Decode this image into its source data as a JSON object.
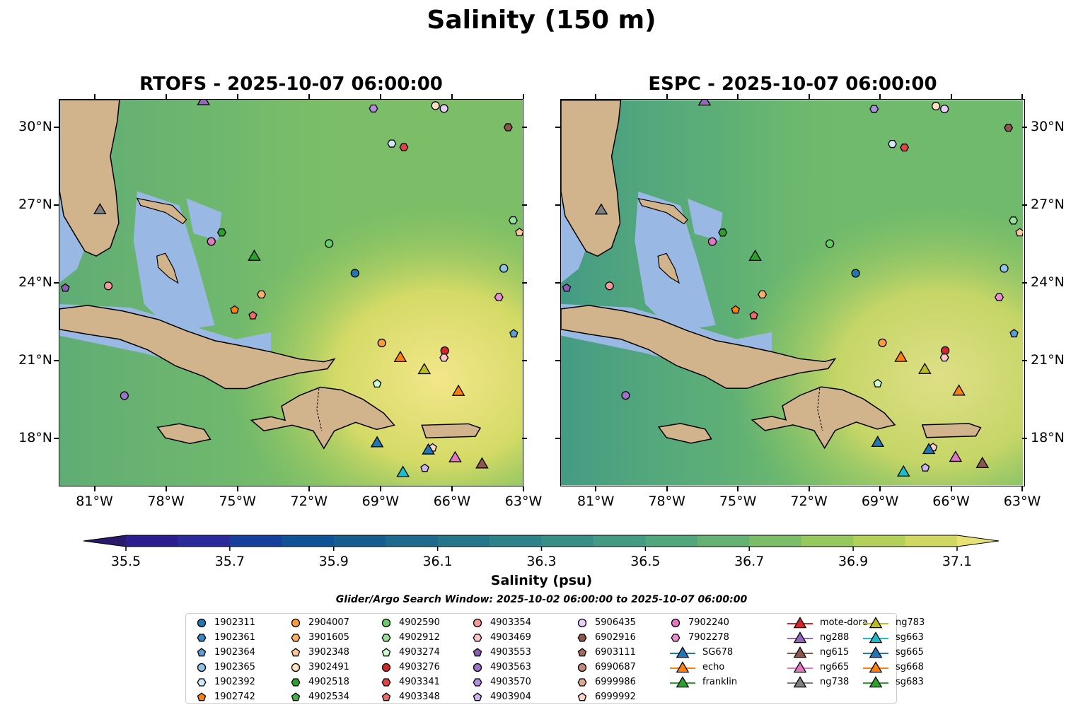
{
  "chart_data": {
    "type": "heatmap",
    "title": "Salinity (150 m)",
    "panels": [
      {
        "title": "RTOFS - 2025-10-07 06:00:00",
        "model": "RTOFS"
      },
      {
        "title": "ESPC - 2025-10-07 06:00:00",
        "model": "ESPC"
      }
    ],
    "lon_range": [
      -82.5,
      -63
    ],
    "lat_range": [
      16.15,
      31.1
    ],
    "x_ticks": [
      {
        "v": -81,
        "label": "81°W"
      },
      {
        "v": -78,
        "label": "78°W"
      },
      {
        "v": -75,
        "label": "75°W"
      },
      {
        "v": -72,
        "label": "72°W"
      },
      {
        "v": -69,
        "label": "69°W"
      },
      {
        "v": -66,
        "label": "66°W"
      },
      {
        "v": -63,
        "label": "63°W"
      }
    ],
    "y_ticks": [
      {
        "v": 30,
        "label": "30°N"
      },
      {
        "v": 27,
        "label": "27°N"
      },
      {
        "v": 24,
        "label": "24°N"
      },
      {
        "v": 21,
        "label": "21°N"
      },
      {
        "v": 18,
        "label": "18°N"
      }
    ],
    "colorbar": {
      "label": "Salinity (psu)",
      "min": 35.5,
      "max": 37.1,
      "step": 0.1,
      "ticks": [
        "35.5",
        "35.7",
        "35.9",
        "36.1",
        "36.3",
        "36.5",
        "36.7",
        "36.9",
        "37.1"
      ],
      "colors": [
        "#2a186c",
        "#2b1f8f",
        "#2a2a9c",
        "#15409d",
        "#0f5296",
        "#155e8f",
        "#1e6a8d",
        "#26768b",
        "#2e838a",
        "#388f88",
        "#439b84",
        "#52a77d",
        "#64b373",
        "#7bbe67",
        "#95c85d",
        "#b2d05a",
        "#cfd962",
        "#e8e174",
        "#f7e88a"
      ],
      "land_color": "#d2b48c",
      "shelf_color": "#9ab8e4"
    },
    "search_window": "Glider/Argo Search Window: 2025-10-02 06:00:00 to 2025-10-07 06:00:00",
    "markers": [
      {
        "name": "1902311",
        "shape": "circle",
        "color": "#1f77b4",
        "lon": -70.06,
        "lat": 24.38
      },
      {
        "name": "1902361",
        "shape": "hexagon",
        "color": "#3a86c1"
      },
      {
        "name": "1902364",
        "shape": "pentagon",
        "color": "#5a9fd4",
        "lon": -63.37,
        "lat": 22.04
      },
      {
        "name": "1902365",
        "shape": "circle",
        "color": "#8ec3ea",
        "lon": -63.79,
        "lat": 24.57
      },
      {
        "name": "1902392",
        "shape": "hexagon",
        "color": "#cfe8fb",
        "lon": -68.51,
        "lat": 29.4
      },
      {
        "name": "1902742",
        "shape": "pentagon",
        "color": "#ff7f0e",
        "lon": -75.13,
        "lat": 22.96
      },
      {
        "name": "2904007",
        "shape": "circle",
        "color": "#ff9a3c",
        "lon": -68.93,
        "lat": 21.68
      },
      {
        "name": "3901605",
        "shape": "hexagon",
        "color": "#ffb066",
        "lon": -74.0,
        "lat": 23.56
      },
      {
        "name": "3902348",
        "shape": "pentagon",
        "color": "#ffc896",
        "lon": -63.13,
        "lat": 25.96
      },
      {
        "name": "3902491",
        "shape": "circle",
        "color": "#ffe0c0",
        "lon": -66.67,
        "lat": 30.87
      },
      {
        "name": "4902518",
        "shape": "hexagon",
        "color": "#2ca02c",
        "lon": -75.67,
        "lat": 25.96
      },
      {
        "name": "4902534",
        "shape": "pentagon",
        "color": "#45b045"
      },
      {
        "name": "4902590",
        "shape": "circle",
        "color": "#66cc66",
        "lon": -71.15,
        "lat": 25.53
      },
      {
        "name": "4902912",
        "shape": "hexagon",
        "color": "#98e098",
        "lon": -63.4,
        "lat": 26.43
      },
      {
        "name": "4903274",
        "shape": "pentagon",
        "color": "#ccffcc",
        "lon": -69.13,
        "lat": 20.1
      },
      {
        "name": "4903276",
        "shape": "circle",
        "color": "#d62728",
        "lon": -66.28,
        "lat": 21.38
      },
      {
        "name": "4903341",
        "shape": "hexagon",
        "color": "#e04444",
        "lon": -68.0,
        "lat": 29.26
      },
      {
        "name": "4903348",
        "shape": "pentagon",
        "color": "#ec6a6a",
        "lon": -74.36,
        "lat": 22.74
      },
      {
        "name": "4903354",
        "shape": "circle",
        "color": "#f49a9a",
        "lon": -80.45,
        "lat": 23.89
      },
      {
        "name": "4903469",
        "shape": "hexagon",
        "color": "#fcc6c6",
        "lon": -66.31,
        "lat": 21.11
      },
      {
        "name": "4903553",
        "shape": "pentagon",
        "color": "#8b5fb4",
        "lon": -82.26,
        "lat": 23.81
      },
      {
        "name": "4903563",
        "shape": "circle",
        "color": "#9b74c8",
        "lon": -79.77,
        "lat": 19.64
      },
      {
        "name": "4903570",
        "shape": "hexagon",
        "color": "#b28ee0",
        "lon": -69.28,
        "lat": 30.76
      },
      {
        "name": "4903904",
        "shape": "pentagon",
        "color": "#cdb4f0",
        "lon": -67.12,
        "lat": 16.83
      },
      {
        "name": "5906435",
        "shape": "circle",
        "color": "#e6d0fa",
        "lon": -66.31,
        "lat": 30.76
      },
      {
        "name": "6902916",
        "shape": "hexagon",
        "color": "#8c564b",
        "lon": -63.61,
        "lat": 30.03
      },
      {
        "name": "6903111",
        "shape": "pentagon",
        "color": "#a36b5e"
      },
      {
        "name": "6990687",
        "shape": "circle",
        "color": "#c08a7c"
      },
      {
        "name": "6999986",
        "shape": "hexagon",
        "color": "#dca898"
      },
      {
        "name": "6999992",
        "shape": "pentagon",
        "color": "#fcd2c4",
        "lon": -66.79,
        "lat": 17.62
      },
      {
        "name": "7902240",
        "shape": "circle",
        "color": "#e377c2",
        "lon": -76.11,
        "lat": 25.61
      },
      {
        "name": "7902278",
        "shape": "hexagon",
        "color": "#ec8fd2",
        "lon": -64.0,
        "lat": 23.45
      },
      {
        "name": "SG678",
        "shape": "triangle",
        "color": "#1f77b4",
        "lon": -69.13,
        "lat": 17.84
      },
      {
        "name": "echo",
        "shape": "triangle",
        "color": "#ff7f0e",
        "lon": -68.15,
        "lat": 21.14
      },
      {
        "name": "franklin",
        "shape": "triangle",
        "color": "#2ca02c",
        "lon": -74.3,
        "lat": 25.06
      },
      {
        "name": "mote-dora",
        "shape": "triangle",
        "color": "#d62728"
      },
      {
        "name": "ng288",
        "shape": "triangle",
        "color": "#9467bd",
        "lon": -76.44,
        "lat": 31.09
      },
      {
        "name": "ng615",
        "shape": "triangle",
        "color": "#8c564b",
        "lon": -64.71,
        "lat": 17.02
      },
      {
        "name": "ng665",
        "shape": "triangle",
        "color": "#e377c2",
        "lon": -65.84,
        "lat": 17.26
      },
      {
        "name": "ng738",
        "shape": "triangle",
        "color": "#7f7f7f",
        "lon": -80.8,
        "lat": 26.86
      },
      {
        "name": "ng783",
        "shape": "triangle",
        "color": "#bcbd22",
        "lon": -67.14,
        "lat": 20.67
      },
      {
        "name": "sg663",
        "shape": "triangle",
        "color": "#17becf",
        "lon": -68.04,
        "lat": 16.69
      },
      {
        "name": "sg665",
        "shape": "triangle",
        "color": "#1f77b4",
        "lon": -66.97,
        "lat": 17.56
      },
      {
        "name": "sg668",
        "shape": "triangle",
        "color": "#ff7f0e",
        "lon": -65.7,
        "lat": 19.83
      },
      {
        "name": "sg683",
        "shape": "triangle",
        "color": "#2ca02c"
      }
    ]
  }
}
